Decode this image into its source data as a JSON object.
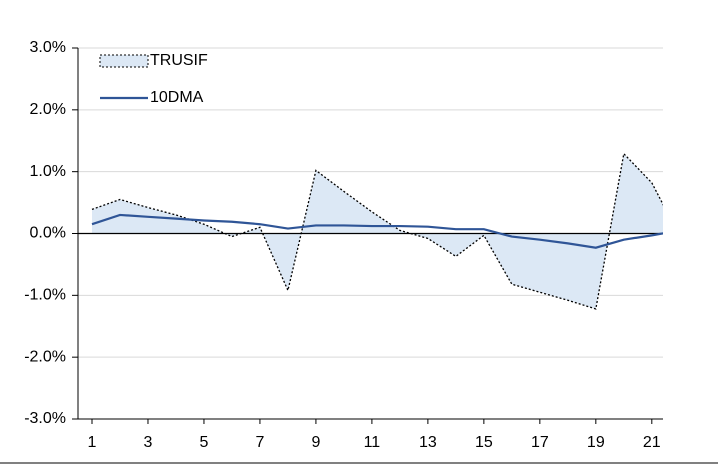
{
  "chart_data": {
    "type": "area",
    "x": [
      1,
      2,
      3,
      4,
      5,
      6,
      7,
      8,
      9,
      10,
      11,
      12,
      13,
      14,
      15,
      16,
      17,
      18,
      19,
      20,
      21,
      22
    ],
    "xlim": [
      0.5,
      21.4
    ],
    "xticks": [
      1,
      3,
      5,
      7,
      9,
      11,
      13,
      15,
      17,
      19,
      21
    ],
    "ylim": [
      -3,
      3
    ],
    "yticks": [
      {
        "value": -3,
        "label": "-3.0%"
      },
      {
        "value": -2,
        "label": "-2.0%"
      },
      {
        "value": -1,
        "label": "-1.0%"
      },
      {
        "value": 0,
        "label": "0.0%"
      },
      {
        "value": 1,
        "label": "1.0%"
      },
      {
        "value": 2,
        "label": "2.0%"
      },
      {
        "value": 3,
        "label": "3.0%"
      }
    ],
    "grid": true,
    "legend": "upper left",
    "series": [
      {
        "name": "TRUSIF",
        "type": "area",
        "color": "#dce8f5",
        "values": [
          0.39,
          0.55,
          0.42,
          0.3,
          0.15,
          -0.05,
          0.1,
          -0.92,
          1.02,
          0.68,
          0.35,
          0.05,
          -0.08,
          -0.37,
          -0.03,
          -0.82,
          -0.95,
          -1.08,
          -1.22,
          1.29,
          0.82,
          -0.05
        ]
      },
      {
        "name": "10DMA",
        "type": "line",
        "color": "#2f5597",
        "values": [
          0.15,
          0.3,
          0.27,
          0.24,
          0.21,
          0.19,
          0.15,
          0.08,
          0.13,
          0.13,
          0.12,
          0.12,
          0.11,
          0.07,
          0.07,
          -0.05,
          -0.1,
          -0.16,
          -0.23,
          -0.1,
          -0.03,
          0.05
        ]
      }
    ]
  }
}
